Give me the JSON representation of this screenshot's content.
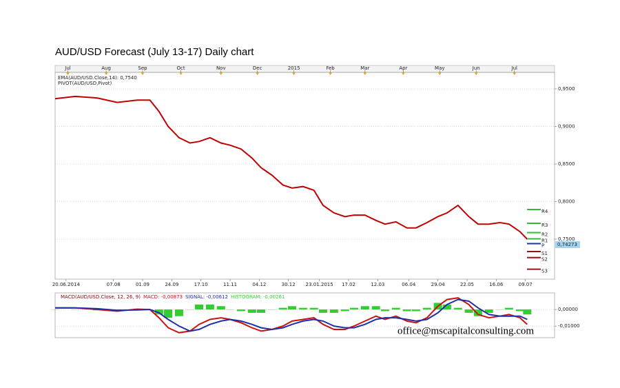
{
  "chart_data": [
    {
      "type": "line",
      "title": "AUD/USD Forecast (July 13-17) Daily chart",
      "pivot_label": "PIVOT(AUD/USD,Pivot)",
      "x": [
        0,
        11,
        23,
        34,
        45,
        52,
        57,
        62,
        68,
        74,
        79,
        85,
        91,
        96,
        102,
        108,
        113,
        119,
        125,
        130,
        136,
        142,
        147,
        153,
        159,
        164,
        170,
        176,
        181,
        187,
        193,
        198,
        204,
        210,
        215,
        221,
        227,
        232,
        238,
        244,
        249,
        255,
        259
      ],
      "xlim": [
        0,
        274
      ],
      "xticks": [
        {
          "value": 6,
          "label": "20.06.2014"
        },
        {
          "value": 32,
          "label": "07.08"
        },
        {
          "value": 48,
          "label": "01.09"
        },
        {
          "value": 64,
          "label": "24.09"
        },
        {
          "value": 80,
          "label": "17.10"
        },
        {
          "value": 96,
          "label": "11.11"
        },
        {
          "value": 112,
          "label": "04.12"
        },
        {
          "value": 128,
          "label": "30.12"
        },
        {
          "value": 145,
          "label": "23.01.2015"
        },
        {
          "value": 161,
          "label": "17.02"
        },
        {
          "value": 177,
          "label": "12.03"
        },
        {
          "value": 194,
          "label": "06.04"
        },
        {
          "value": 210,
          "label": "29.04"
        },
        {
          "value": 226,
          "label": "22.05"
        },
        {
          "value": 242,
          "label": "16.06"
        },
        {
          "value": 258,
          "label": "09.07"
        }
      ],
      "top_xticks": [
        {
          "value": 7,
          "label": "Jul"
        },
        {
          "value": 28,
          "label": "Aug"
        },
        {
          "value": 48,
          "label": "Sep"
        },
        {
          "value": 69,
          "label": "Oct"
        },
        {
          "value": 91,
          "label": "Nov"
        },
        {
          "value": 111,
          "label": "Dec"
        },
        {
          "value": 131,
          "label": "2015"
        },
        {
          "value": 151,
          "label": "Feb"
        },
        {
          "value": 170,
          "label": "Mar"
        },
        {
          "value": 191,
          "label": "Apr"
        },
        {
          "value": 211,
          "label": "May"
        },
        {
          "value": 231,
          "label": "Jun"
        },
        {
          "value": 252,
          "label": "Jul"
        }
      ],
      "ylim": [
        0.6968,
        0.972
      ],
      "yticks": [
        {
          "value": 0.95,
          "label": "0,9500"
        },
        {
          "value": 0.9,
          "label": "0,9000"
        },
        {
          "value": 0.85,
          "label": "0,8500"
        },
        {
          "value": 0.8,
          "label": "0,8000"
        },
        {
          "value": 0.75,
          "label": "0,7500"
        }
      ],
      "grid": true,
      "series": [
        {
          "name": "EMA(AUD/USD.Close,14): 0,7540",
          "color": "#c00000",
          "style": "line",
          "values": [
            0.937,
            0.94,
            0.938,
            0.932,
            0.935,
            0.935,
            0.92,
            0.9,
            0.885,
            0.878,
            0.88,
            0.885,
            0.878,
            0.875,
            0.87,
            0.858,
            0.845,
            0.835,
            0.822,
            0.818,
            0.82,
            0.815,
            0.795,
            0.785,
            0.78,
            0.782,
            0.782,
            0.775,
            0.77,
            0.773,
            0.765,
            0.765,
            0.772,
            0.78,
            0.785,
            0.795,
            0.78,
            0.77,
            0.77,
            0.772,
            0.77,
            0.76,
            0.75
          ]
        }
      ],
      "pivots": [
        {
          "name": "R4",
          "value": 0.7895,
          "color": "#33bb33"
        },
        {
          "name": "R3",
          "value": 0.7711,
          "color": "#33bb33"
        },
        {
          "name": "R2",
          "value": 0.7587,
          "color": "#33bb33"
        },
        {
          "name": "R1",
          "value": 0.7505,
          "color": "#33bb33"
        },
        {
          "name": "P",
          "value": 0.744,
          "color": "#1f2fa8"
        },
        {
          "name": "S1",
          "value": 0.7335,
          "color": "#a01010"
        },
        {
          "name": "S2",
          "value": 0.7255,
          "color": "#a01010"
        },
        {
          "name": "S3",
          "value": 0.71,
          "color": "#a01010"
        }
      ],
      "last_price": {
        "value": 0.74273,
        "label": "0,74273"
      }
    },
    {
      "type": "line",
      "title": "MACD(AUD/USD.Close, 12, 26, 9)",
      "watermark": "office@mscapitalconsulting.com",
      "x": [
        0,
        11,
        23,
        34,
        45,
        52,
        57,
        62,
        68,
        74,
        79,
        85,
        91,
        96,
        102,
        108,
        113,
        119,
        125,
        130,
        136,
        142,
        147,
        153,
        159,
        164,
        170,
        176,
        181,
        187,
        193,
        198,
        204,
        210,
        215,
        221,
        227,
        232,
        238,
        244,
        249,
        255,
        259
      ],
      "xlim": [
        0,
        274
      ],
      "ylim": [
        -0.017,
        0.01
      ],
      "yticks": [
        {
          "value": 0,
          "label": "0,00000"
        },
        {
          "value": -0.01,
          "label": "-0,01000"
        }
      ],
      "grid": true,
      "series": [
        {
          "name": "HISTOGRAM: -0,00261",
          "color": "#33cc33",
          "style": "bar",
          "values": [
            0,
            0,
            -0.0005,
            -0.0005,
            0.0005,
            0,
            -0.003,
            -0.005,
            -0.004,
            0,
            0.003,
            0.003,
            0.002,
            0,
            -0.001,
            -0.002,
            -0.002,
            0,
            0.001,
            0.002,
            0.001,
            0.001,
            -0.002,
            -0.002,
            -0.001,
            0.001,
            0.002,
            0.002,
            -0.001,
            0.001,
            -0.001,
            -0.001,
            0.001,
            0.004,
            0.003,
            0.001,
            -0.002,
            -0.004,
            -0.002,
            0,
            0.001,
            -0.001,
            -0.003
          ]
        },
        {
          "name": "MACD: -0,00873",
          "color": "#cc1111",
          "style": "line",
          "values": [
            0.001,
            0.001,
            0,
            -0.001,
            0.0002,
            0,
            -0.005,
            -0.011,
            -0.014,
            -0.013,
            -0.009,
            -0.006,
            -0.005,
            -0.006,
            -0.008,
            -0.011,
            -0.013,
            -0.012,
            -0.01,
            -0.007,
            -0.006,
            -0.005,
            -0.009,
            -0.012,
            -0.012,
            -0.01,
            -0.007,
            -0.004,
            -0.006,
            -0.004,
            -0.007,
            -0.008,
            -0.005,
            0.002,
            0.006,
            0.007,
            0.003,
            -0.003,
            -0.005,
            -0.004,
            -0.003,
            -0.005,
            -0.009
          ]
        },
        {
          "name": "SIGNAL: -0,00612",
          "color": "#1f2fa8",
          "style": "line",
          "values": [
            0.001,
            0.001,
            0.0005,
            -0.0005,
            -0.0003,
            0,
            -0.002,
            -0.006,
            -0.01,
            -0.013,
            -0.012,
            -0.009,
            -0.007,
            -0.006,
            -0.007,
            -0.009,
            -0.011,
            -0.012,
            -0.011,
            -0.009,
            -0.007,
            -0.006,
            -0.007,
            -0.01,
            -0.011,
            -0.011,
            -0.009,
            -0.006,
            -0.005,
            -0.005,
            -0.006,
            -0.007,
            -0.006,
            -0.002,
            0.003,
            0.006,
            0.005,
            0.001,
            -0.003,
            -0.004,
            -0.004,
            -0.004,
            -0.006
          ]
        }
      ]
    }
  ]
}
